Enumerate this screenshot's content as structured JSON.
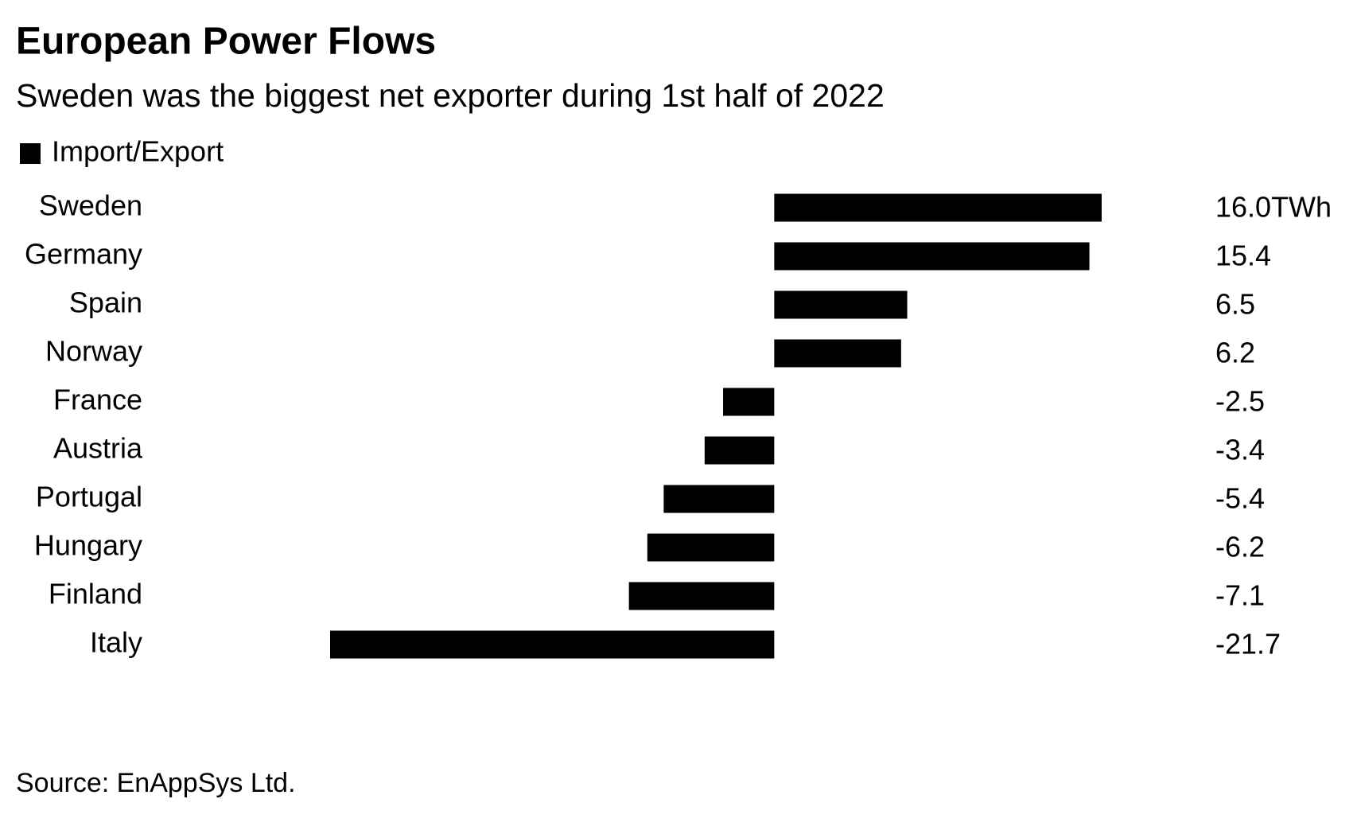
{
  "chart_data": {
    "type": "hbar",
    "title": "European Power Flows",
    "subtitle": "Sweden was the biggest net exporter during 1st half of 2022",
    "source": "Source: EnAppSys Ltd.",
    "categories": [
      "Sweden",
      "Germany",
      "Spain",
      "Norway",
      "France",
      "Austria",
      "Portugal",
      "Hungary",
      "Finland",
      "Italy"
    ],
    "series": [
      {
        "name": "Import/Export",
        "color": "#000000",
        "values": [
          16.0,
          15.4,
          6.5,
          6.2,
          -2.5,
          -3.4,
          -5.4,
          -6.2,
          -7.1,
          -21.7
        ],
        "value_labels": [
          "16.0TWh",
          "15.4",
          "6.5",
          "6.2",
          "-2.5",
          "-3.4",
          "-5.4",
          "-6.2",
          "-7.1",
          "-21.7"
        ]
      }
    ]
  }
}
